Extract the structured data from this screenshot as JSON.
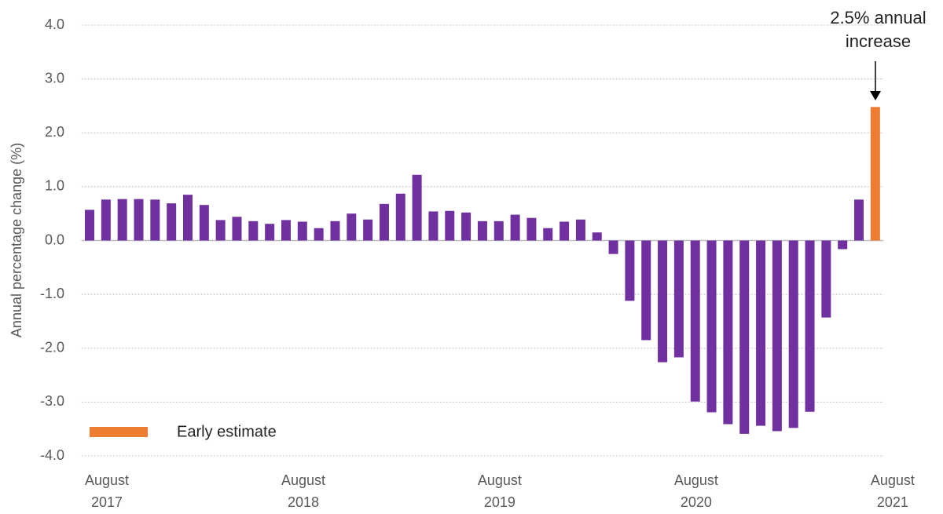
{
  "chart_data": {
    "type": "bar",
    "y_label": "Annual percentage change (%)",
    "annotation": "2.5% annual increase",
    "categories": [
      "August 2017",
      null,
      null,
      null,
      null,
      null,
      null,
      null,
      null,
      null,
      null,
      null,
      "August 2018",
      null,
      null,
      null,
      null,
      null,
      null,
      null,
      null,
      null,
      null,
      null,
      "August 2019",
      null,
      null,
      null,
      null,
      null,
      null,
      null,
      null,
      null,
      null,
      null,
      "August 2020",
      null,
      null,
      null,
      null,
      null,
      null,
      null,
      null,
      null,
      null,
      null,
      "August 2021"
    ],
    "series": [
      {
        "color": "#7030a0",
        "values": [
          0.57,
          0.76,
          0.77,
          0.77,
          0.76,
          0.69,
          0.85,
          0.66,
          0.38,
          0.44,
          0.36,
          0.31,
          0.38,
          0.35,
          0.23,
          0.36,
          0.5,
          0.39,
          0.68,
          0.87,
          1.22,
          0.54,
          0.55,
          0.52,
          0.36,
          0.36,
          0.48,
          0.42,
          0.23,
          0.35,
          0.39,
          0.15,
          -0.25,
          -1.12,
          -1.85,
          -2.26,
          -2.17,
          -2.99,
          -3.19,
          -3.41,
          -3.59,
          -3.44,
          -3.54,
          -3.48,
          -3.18,
          -1.43,
          -0.16,
          0.76,
          null
        ]
      },
      {
        "name": "Early estimate",
        "color": "#ed7d31",
        "values": [
          null,
          null,
          null,
          null,
          null,
          null,
          null,
          null,
          null,
          null,
          null,
          null,
          null,
          null,
          null,
          null,
          null,
          null,
          null,
          null,
          null,
          null,
          null,
          null,
          null,
          null,
          null,
          null,
          null,
          null,
          null,
          null,
          null,
          null,
          null,
          null,
          null,
          null,
          null,
          null,
          null,
          null,
          null,
          null,
          null,
          null,
          null,
          null,
          2.48
        ]
      }
    ],
    "ylim": [
      -4,
      4
    ],
    "yticks": [
      {
        "value": 4,
        "label": "4.0"
      },
      {
        "value": 3,
        "label": "3.0"
      },
      {
        "value": 2,
        "label": "2.0"
      },
      {
        "value": 1,
        "label": "1.0"
      },
      {
        "value": 0,
        "label": "0.0"
      },
      {
        "value": -1,
        "label": "-1.0"
      },
      {
        "value": -2,
        "label": "-2.0"
      },
      {
        "value": -3,
        "label": "-3.0"
      },
      {
        "value": -4,
        "label": "-4.0"
      }
    ],
    "grid": true
  }
}
